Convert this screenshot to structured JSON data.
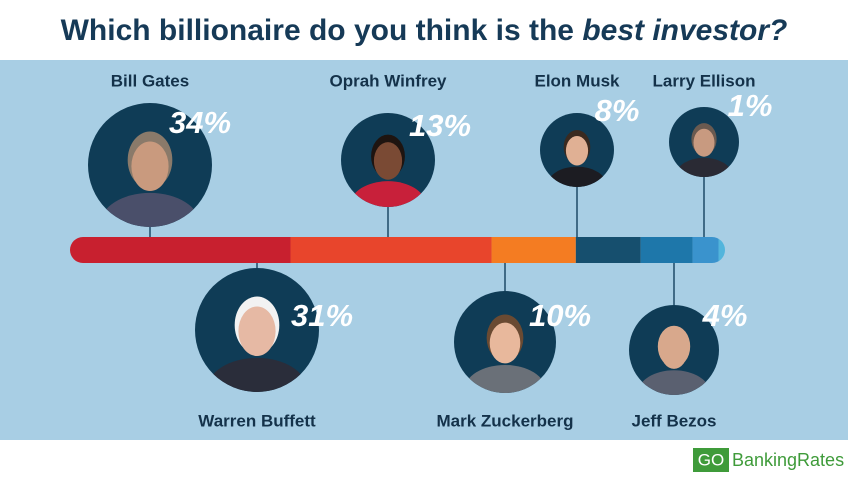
{
  "chart_data": {
    "type": "segmented-bar",
    "title": "Which billionaire do you think is the",
    "title_emphasis": "best investor?",
    "categories": [
      "Bill Gates",
      "Warren Buffett",
      "Oprah Winfrey",
      "Mark Zuckerberg",
      "Elon Musk",
      "Jeff Bezos",
      "Larry Ellison"
    ],
    "values": [
      34,
      31,
      13,
      10,
      8,
      4,
      1
    ],
    "value_labels": [
      "34%",
      "31%",
      "13%",
      "10%",
      "8%",
      "4%",
      "1%"
    ],
    "colors": [
      "#c8202f",
      "#e8452c",
      "#f47c22",
      "#164f6e",
      "#1e77aa",
      "#3a93cd",
      "#52b5dc"
    ],
    "source": {
      "logo": "GO",
      "name": "BankingRates"
    }
  }
}
